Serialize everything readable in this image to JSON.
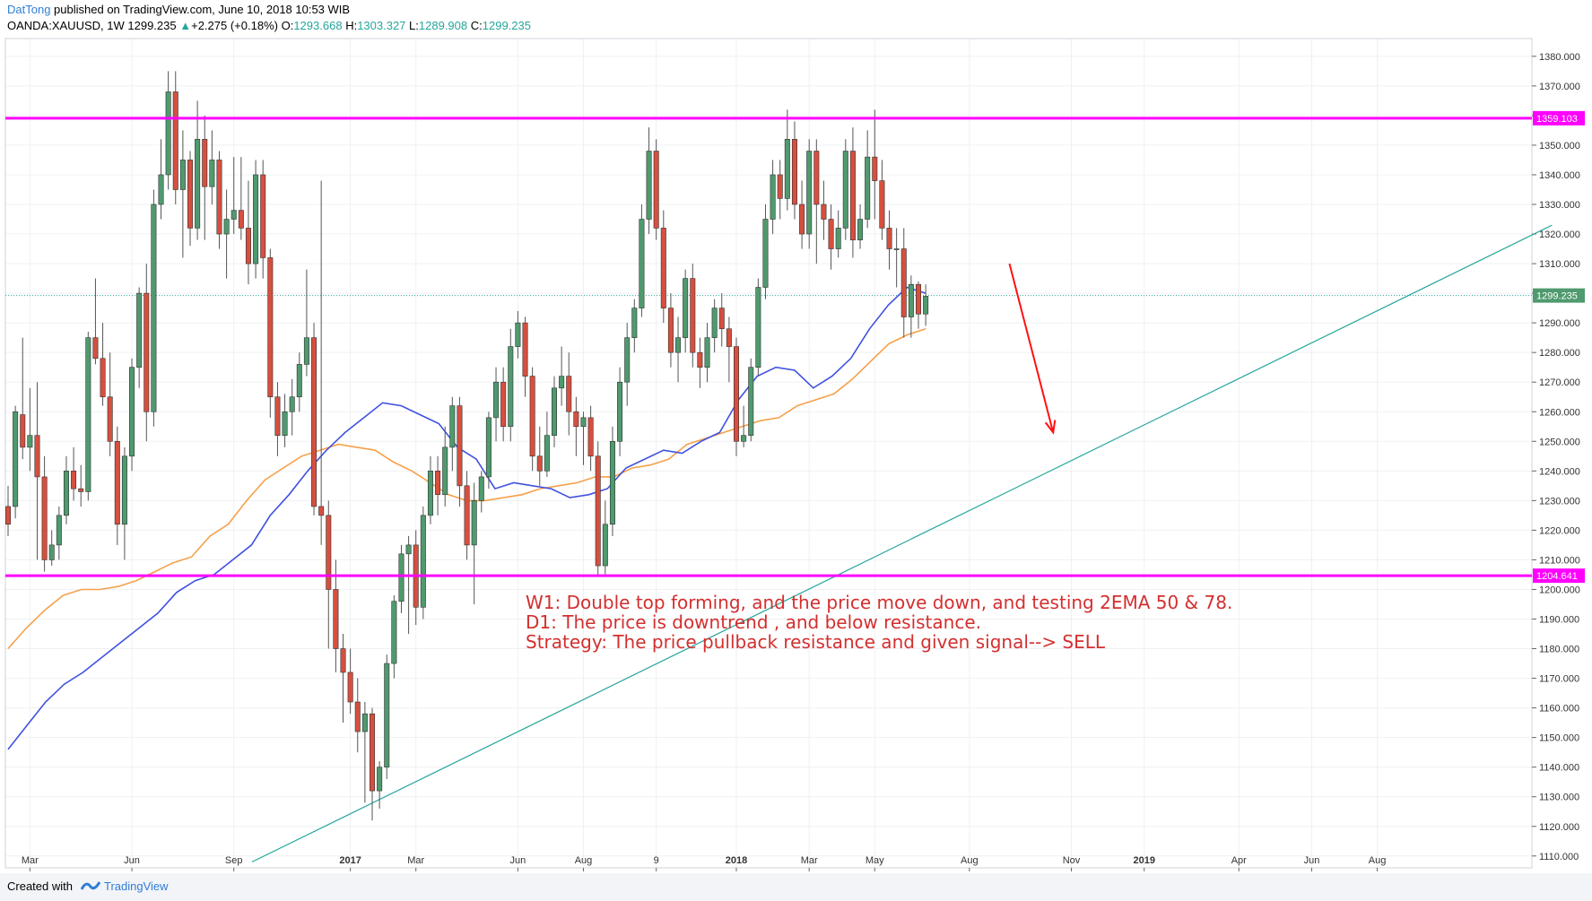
{
  "header": {
    "author": "DatTong",
    "published": "published on TradingView.com, June 10, 2018 10:53 WIB",
    "symbol": "OANDA:XAUUSD, 1W",
    "last": "1299.235",
    "change_icon": "triangle-up-icon",
    "change_arrow": "▲",
    "change": "+2.275 (+0.18%)",
    "o_label": "O:",
    "o": "1293.668",
    "h_label": "H:",
    "h": "1303.327",
    "l_label": "L:",
    "l": "1289.908",
    "c_label": "C:",
    "c": "1299.235"
  },
  "annotations": [
    "W1: Double top forming, and the price move down, and testing 2EMA 50 & 78.",
    "D1: The price is downtrend , and below resistance.",
    "Strategy: The price pullback resistance and given signal--> SELL"
  ],
  "footer": {
    "created": "Created with",
    "brand": "TradingView"
  },
  "colors": {
    "bull": "#26a69a",
    "bull_fill": "#4f9a6e",
    "bear": "#d9534f",
    "bear_fill": "#d64f3f",
    "wick": "#555555",
    "ema50": "#3f51e0",
    "ema78": "#f5a04a",
    "level": "#ff00ff",
    "trend": "#26a69a",
    "arrow": "#ff1111",
    "last_price_bg": "#4f9a6e",
    "grid": "#eef0f3"
  },
  "chart_data": {
    "type": "candlestick",
    "y_ticks": [
      1110,
      1120,
      1130,
      1140,
      1150,
      1160,
      1170,
      1180,
      1190,
      1200,
      1210,
      1220,
      1230,
      1240,
      1250,
      1260,
      1270,
      1280,
      1290,
      1300,
      1310,
      1320,
      1330,
      1340,
      1350,
      1360,
      1370,
      1380
    ],
    "y_tick_labels": [
      "1110.000",
      "1120.000",
      "1130.000",
      "1140.000",
      "1150.000",
      "1160.000",
      "1170.000",
      "1180.000",
      "1190.000",
      "1200.000",
      "1210.000",
      "1220.000",
      "1230.000",
      "1240.000",
      "1250.000",
      "1260.000",
      "1270.000",
      "1280.000",
      "1290.000",
      "1300.000",
      "1310.000",
      "1320.000",
      "1330.000",
      "1340.000",
      "1350.000",
      "1360.000",
      "1370.000",
      "1380.000"
    ],
    "ylim": [
      1106,
      1386
    ],
    "x_range_weeks": [
      0,
      212
    ],
    "x_ticks": [
      {
        "label": "Mar",
        "week": 3,
        "bold": false
      },
      {
        "label": "Jun",
        "week": 17,
        "bold": false
      },
      {
        "label": "Sep",
        "week": 31,
        "bold": false
      },
      {
        "label": "2017",
        "week": 47,
        "bold": true
      },
      {
        "label": "Mar",
        "week": 56,
        "bold": false
      },
      {
        "label": "Jun",
        "week": 70,
        "bold": false
      },
      {
        "label": "Aug",
        "week": 79,
        "bold": false
      },
      {
        "label": "9",
        "week": 89,
        "bold": false
      },
      {
        "label": "2018",
        "week": 100,
        "bold": true
      },
      {
        "label": "Mar",
        "week": 110,
        "bold": false
      },
      {
        "label": "May",
        "week": 119,
        "bold": false
      },
      {
        "label": "Aug",
        "week": 132,
        "bold": false
      },
      {
        "label": "Nov",
        "week": 146,
        "bold": false
      },
      {
        "label": "2019",
        "week": 156,
        "bold": true
      },
      {
        "label": "Apr",
        "week": 169,
        "bold": false
      },
      {
        "label": "Jun",
        "week": 179,
        "bold": false
      },
      {
        "label": "Aug",
        "week": 188,
        "bold": false
      }
    ],
    "candles": [
      [
        1228,
        1222,
        1235,
        1218
      ],
      [
        1228,
        1260,
        1262,
        1224
      ],
      [
        1259,
        1248,
        1285,
        1244
      ],
      [
        1248,
        1252,
        1268,
        1240
      ],
      [
        1252,
        1238,
        1270,
        1210
      ],
      [
        1238,
        1210,
        1245,
        1206
      ],
      [
        1210,
        1215,
        1220,
        1208
      ],
      [
        1215,
        1225,
        1228,
        1210
      ],
      [
        1225,
        1240,
        1245,
        1222
      ],
      [
        1240,
        1234,
        1248,
        1230
      ],
      [
        1234,
        1233,
        1242,
        1228
      ],
      [
        1233,
        1285,
        1287,
        1230
      ],
      [
        1285,
        1278,
        1305,
        1276
      ],
      [
        1278,
        1265,
        1290,
        1262
      ],
      [
        1265,
        1250,
        1280,
        1245
      ],
      [
        1250,
        1222,
        1255,
        1215
      ],
      [
        1222,
        1245,
        1248,
        1210
      ],
      [
        1245,
        1275,
        1278,
        1240
      ],
      [
        1275,
        1300,
        1302,
        1268
      ],
      [
        1300,
        1260,
        1310,
        1250
      ],
      [
        1260,
        1330,
        1335,
        1255
      ],
      [
        1330,
        1340,
        1352,
        1325
      ],
      [
        1340,
        1368,
        1375,
        1335
      ],
      [
        1368,
        1335,
        1375,
        1330
      ],
      [
        1335,
        1345,
        1355,
        1312
      ],
      [
        1345,
        1322,
        1348,
        1316
      ],
      [
        1322,
        1352,
        1365,
        1318
      ],
      [
        1352,
        1336,
        1360,
        1318
      ],
      [
        1336,
        1345,
        1355,
        1330
      ],
      [
        1345,
        1320,
        1348,
        1315
      ],
      [
        1320,
        1325,
        1335,
        1305
      ],
      [
        1325,
        1328,
        1346,
        1320
      ],
      [
        1328,
        1322,
        1346,
        1318
      ],
      [
        1322,
        1310,
        1338,
        1303
      ],
      [
        1310,
        1340,
        1345,
        1305
      ],
      [
        1340,
        1312,
        1345,
        1305
      ],
      [
        1312,
        1265,
        1315,
        1258
      ],
      [
        1265,
        1252,
        1270,
        1245
      ],
      [
        1252,
        1260,
        1266,
        1248
      ],
      [
        1260,
        1265,
        1271,
        1252
      ],
      [
        1265,
        1276,
        1280,
        1260
      ],
      [
        1276,
        1285,
        1308,
        1272
      ],
      [
        1285,
        1228,
        1290,
        1225
      ],
      [
        1228,
        1225,
        1338,
        1215
      ],
      [
        1225,
        1200,
        1230,
        1180
      ],
      [
        1200,
        1180,
        1210,
        1172
      ],
      [
        1180,
        1172,
        1185,
        1155
      ],
      [
        1172,
        1162,
        1180,
        1158
      ],
      [
        1162,
        1152,
        1170,
        1145
      ],
      [
        1152,
        1158,
        1162,
        1128
      ],
      [
        1158,
        1132,
        1160,
        1122
      ],
      [
        1132,
        1140,
        1142,
        1126
      ],
      [
        1140,
        1175,
        1178,
        1136
      ],
      [
        1175,
        1196,
        1198,
        1170
      ],
      [
        1196,
        1212,
        1215,
        1192
      ],
      [
        1212,
        1215,
        1218,
        1185
      ],
      [
        1215,
        1194,
        1220,
        1188
      ],
      [
        1194,
        1225,
        1228,
        1190
      ],
      [
        1225,
        1240,
        1245,
        1222
      ],
      [
        1240,
        1232,
        1245,
        1225
      ],
      [
        1232,
        1248,
        1255,
        1228
      ],
      [
        1248,
        1262,
        1265,
        1240
      ],
      [
        1262,
        1235,
        1265,
        1228
      ],
      [
        1235,
        1215,
        1240,
        1210
      ],
      [
        1215,
        1230,
        1236,
        1195
      ],
      [
        1230,
        1238,
        1240,
        1226
      ],
      [
        1238,
        1258,
        1260,
        1234
      ],
      [
        1258,
        1270,
        1275,
        1250
      ],
      [
        1270,
        1255,
        1275,
        1250
      ],
      [
        1255,
        1282,
        1288,
        1250
      ],
      [
        1282,
        1290,
        1294,
        1278
      ],
      [
        1290,
        1272,
        1292,
        1265
      ],
      [
        1272,
        1245,
        1275,
        1240
      ],
      [
        1245,
        1240,
        1255,
        1235
      ],
      [
        1240,
        1252,
        1260,
        1238
      ],
      [
        1252,
        1268,
        1272,
        1248
      ],
      [
        1268,
        1272,
        1282,
        1262
      ],
      [
        1272,
        1260,
        1280,
        1252
      ],
      [
        1260,
        1255,
        1265,
        1245
      ],
      [
        1255,
        1258,
        1260,
        1242
      ],
      [
        1258,
        1245,
        1262,
        1240
      ],
      [
        1245,
        1208,
        1250,
        1205
      ],
      [
        1208,
        1222,
        1230,
        1205
      ],
      [
        1222,
        1250,
        1255,
        1218
      ],
      [
        1250,
        1270,
        1275,
        1245
      ],
      [
        1270,
        1285,
        1290,
        1262
      ],
      [
        1285,
        1295,
        1298,
        1280
      ],
      [
        1295,
        1325,
        1330,
        1292
      ],
      [
        1325,
        1348,
        1356,
        1320
      ],
      [
        1348,
        1322,
        1352,
        1318
      ],
      [
        1322,
        1295,
        1328,
        1290
      ],
      [
        1295,
        1280,
        1300,
        1275
      ],
      [
        1280,
        1285,
        1292,
        1270
      ],
      [
        1285,
        1305,
        1308,
        1280
      ],
      [
        1305,
        1280,
        1310,
        1275
      ],
      [
        1280,
        1275,
        1285,
        1268
      ],
      [
        1275,
        1285,
        1290,
        1270
      ],
      [
        1285,
        1295,
        1298,
        1280
      ],
      [
        1295,
        1288,
        1300,
        1282
      ],
      [
        1288,
        1282,
        1292,
        1270
      ],
      [
        1282,
        1250,
        1285,
        1245
      ],
      [
        1250,
        1252,
        1262,
        1248
      ],
      [
        1252,
        1275,
        1278,
        1250
      ],
      [
        1275,
        1302,
        1305,
        1272
      ],
      [
        1302,
        1325,
        1330,
        1298
      ],
      [
        1325,
        1340,
        1345,
        1320
      ],
      [
        1340,
        1332,
        1345,
        1325
      ],
      [
        1332,
        1352,
        1362,
        1328
      ],
      [
        1352,
        1330,
        1358,
        1325
      ],
      [
        1330,
        1320,
        1338,
        1315
      ],
      [
        1320,
        1348,
        1352,
        1315
      ],
      [
        1348,
        1330,
        1352,
        1310
      ],
      [
        1330,
        1325,
        1338,
        1318
      ],
      [
        1325,
        1315,
        1330,
        1308
      ],
      [
        1315,
        1322,
        1328,
        1312
      ],
      [
        1322,
        1348,
        1352,
        1318
      ],
      [
        1348,
        1318,
        1356,
        1312
      ],
      [
        1318,
        1325,
        1330,
        1315
      ],
      [
        1325,
        1346,
        1355,
        1322
      ],
      [
        1346,
        1338,
        1362,
        1325
      ],
      [
        1338,
        1322,
        1345,
        1318
      ],
      [
        1322,
        1315,
        1328,
        1308
      ],
      [
        1315,
        1315,
        1322,
        1302
      ],
      [
        1315,
        1292,
        1322,
        1285
      ],
      [
        1292,
        1303,
        1306,
        1285
      ],
      [
        1303,
        1293,
        1304,
        1288
      ],
      [
        1293,
        1299,
        1303,
        1289
      ]
    ],
    "ema50": [
      1146,
      1154,
      1162,
      1168,
      1172,
      1177,
      1182,
      1187,
      1192,
      1199,
      1203,
      1205,
      1210,
      1215,
      1225,
      1232,
      1240,
      1247,
      1253,
      1258,
      1263,
      1262,
      1259,
      1256,
      1248,
      1244,
      1234,
      1236,
      1235,
      1234,
      1231,
      1232,
      1234,
      1241,
      1244,
      1247,
      1246,
      1250,
      1253,
      1264,
      1272,
      1275,
      1274,
      1268,
      1272,
      1278,
      1288,
      1296,
      1302,
      1300
    ],
    "ema78": [
      1180,
      1187,
      1193,
      1198,
      1200,
      1200,
      1201,
      1203,
      1206,
      1209,
      1211,
      1218,
      1222,
      1230,
      1237,
      1241,
      1245,
      1247,
      1249,
      1248,
      1247,
      1243,
      1240,
      1236,
      1232,
      1230,
      1230,
      1231,
      1232,
      1234,
      1235,
      1236,
      1238,
      1238,
      1241,
      1242,
      1244,
      1249,
      1251,
      1253,
      1255,
      1257,
      1258,
      1262,
      1264,
      1266,
      1271,
      1277,
      1283,
      1286,
      1288
    ],
    "levels": [
      {
        "name": "resistance",
        "price": 1359.103,
        "label": "1359.103"
      },
      {
        "name": "support",
        "price": 1204.641,
        "label": "1204.641"
      }
    ],
    "last_price": {
      "price": 1299.235,
      "label": "1299.235"
    },
    "trendline": {
      "start": {
        "week": 33.5,
        "price": 1108
      },
      "end": {
        "week": 212,
        "price": 1323
      }
    },
    "arrow": {
      "from": {
        "week": 137.5,
        "price": 1310
      },
      "to": {
        "week": 143.5,
        "price": 1253
      }
    }
  }
}
